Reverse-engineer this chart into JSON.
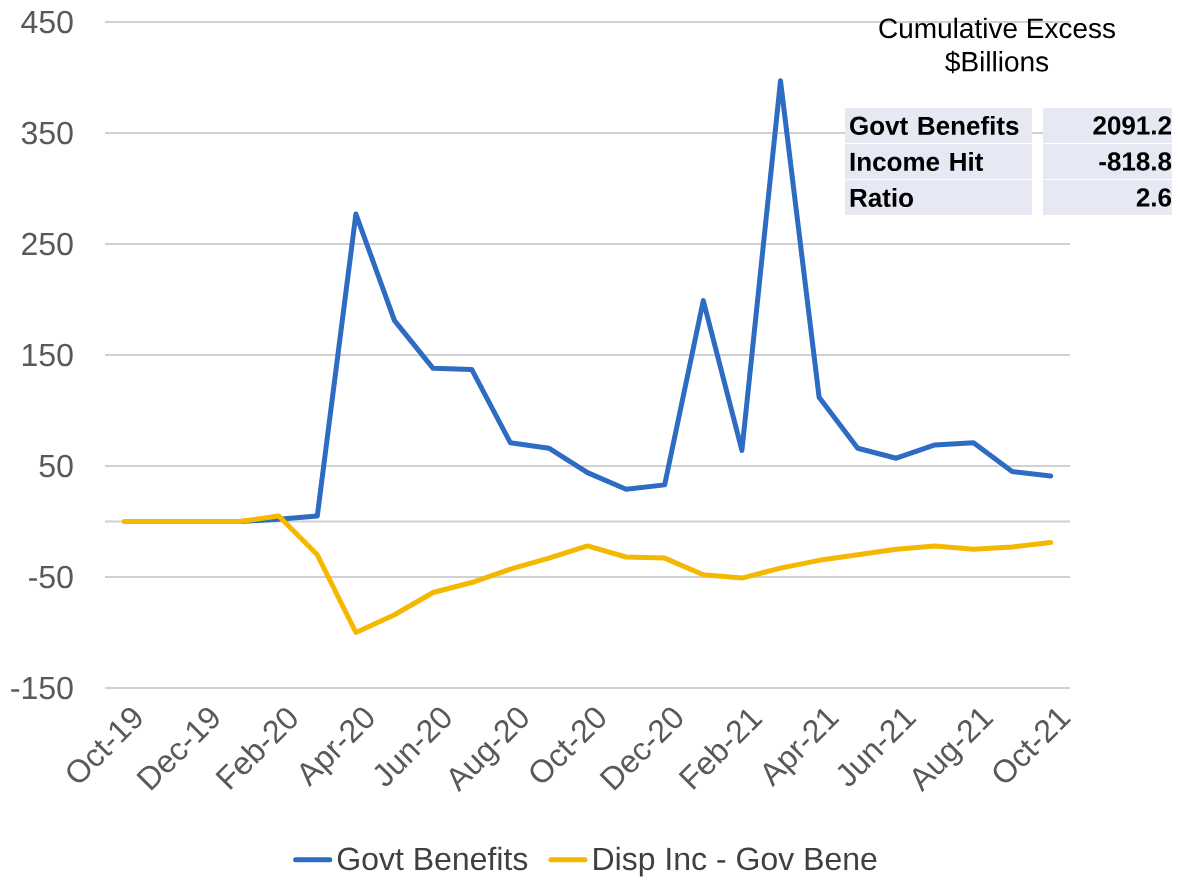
{
  "chart_data": {
    "type": "line",
    "categories": [
      "Oct-19",
      null,
      "Dec-19",
      null,
      "Feb-20",
      null,
      "Apr-20",
      null,
      "Jun-20",
      null,
      "Aug-20",
      null,
      "Oct-20",
      null,
      "Dec-20",
      null,
      "Feb-21",
      null,
      "Apr-21",
      null,
      "Jun-21",
      null,
      "Aug-21",
      null,
      "Oct-21"
    ],
    "series": [
      {
        "name": "Govt Benefits",
        "color": "#2e6bc2",
        "values": [
          null,
          null,
          0,
          0,
          2,
          5,
          277,
          181,
          138,
          137,
          71,
          66,
          44,
          29,
          33,
          199,
          64,
          397,
          112,
          66,
          57,
          69,
          71,
          45,
          41
        ]
      },
      {
        "name": "Disp Inc - Gov Bene",
        "color": "#f4b800",
        "values": [
          0,
          0,
          0,
          0,
          5,
          -30,
          -100,
          -84,
          -64,
          -55,
          -43,
          -33,
          -22,
          -32,
          -33,
          -48,
          -51,
          -42,
          -35,
          -30,
          -25,
          -22,
          -25,
          -23,
          -19
        ]
      }
    ],
    "ylim": [
      -150,
      450
    ],
    "yticks": [
      -150,
      -50,
      50,
      150,
      250,
      350,
      450
    ],
    "grid": "y",
    "legend": "bottom",
    "annotations": [
      "Cumulative Excess",
      "$Billions",
      "Govt Benefits",
      "2091.2",
      "Income Hit",
      "-818.8",
      "Ratio",
      "2.6"
    ]
  }
}
